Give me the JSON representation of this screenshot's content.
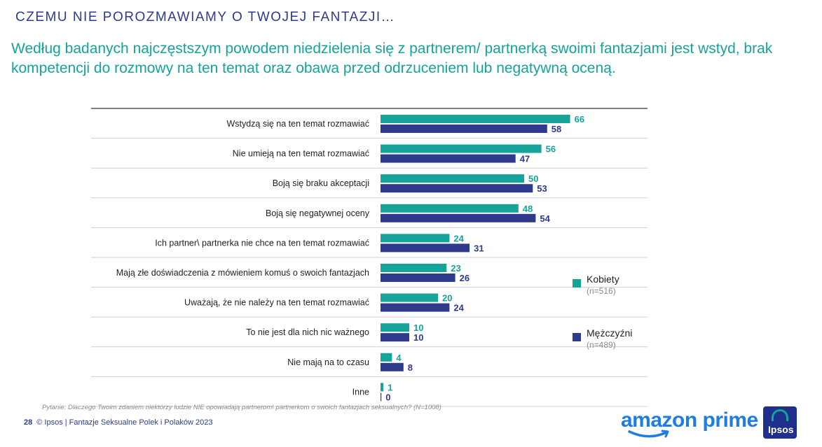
{
  "header": "CZEMU NIE POROZMAWIAMY O TWOJEJ FANTAZJI…",
  "subtitle": "Według badanych najczęstszym powodem niedzielenia się z partnerem/ partnerką swoimi fantazjami jest wstyd, brak kompetencji do rozmowy na ten temat oraz obawa przed odrzuceniem lub negatywną oceną.",
  "colors": {
    "kobiety": "#16a39a",
    "mezczyzni": "#2e3a8c"
  },
  "chart_data": {
    "type": "bar",
    "orientation": "horizontal",
    "categories": [
      "Wstydzą się na ten temat rozmawiać",
      "Nie umieją na ten temat rozmawiać",
      "Boją się braku akceptacji",
      "Boją się negatywnej oceny",
      "Ich partner\\ partnerka nie chce na ten temat rozmawiać",
      "Mają złe doświadczenia z mówieniem komuś o swoich fantazjach",
      "Uważają, że nie należy na ten temat rozmawiać",
      "To nie jest dla nich nic ważnego",
      "Nie mają na to czasu",
      "Inne"
    ],
    "series": [
      {
        "name": "Kobiety",
        "values": [
          66,
          56,
          50,
          48,
          24,
          23,
          20,
          10,
          4,
          1
        ]
      },
      {
        "name": "Mężczyźni",
        "values": [
          58,
          47,
          53,
          54,
          31,
          26,
          24,
          10,
          8,
          0
        ]
      }
    ],
    "data_labels": true,
    "grid": false
  },
  "legend": [
    {
      "name": "Kobiety",
      "n": "(n=516)"
    },
    {
      "name": "Mężczyźni",
      "n": "(n=489)"
    }
  ],
  "footnote": "Pytanie: Dlaczego Twoim zdaniem niektórzy ludzie NIE opowiadają partnerom\\ partnerkom o swoich fantazjach seksualnych? (N=1008)",
  "footer": {
    "page": "28",
    "text": "© Ipsos | Fantazje Seksualne Polek i Polaków 2023"
  },
  "logos": {
    "amazon": "amazon prime",
    "ipsos": "Ipsos"
  }
}
